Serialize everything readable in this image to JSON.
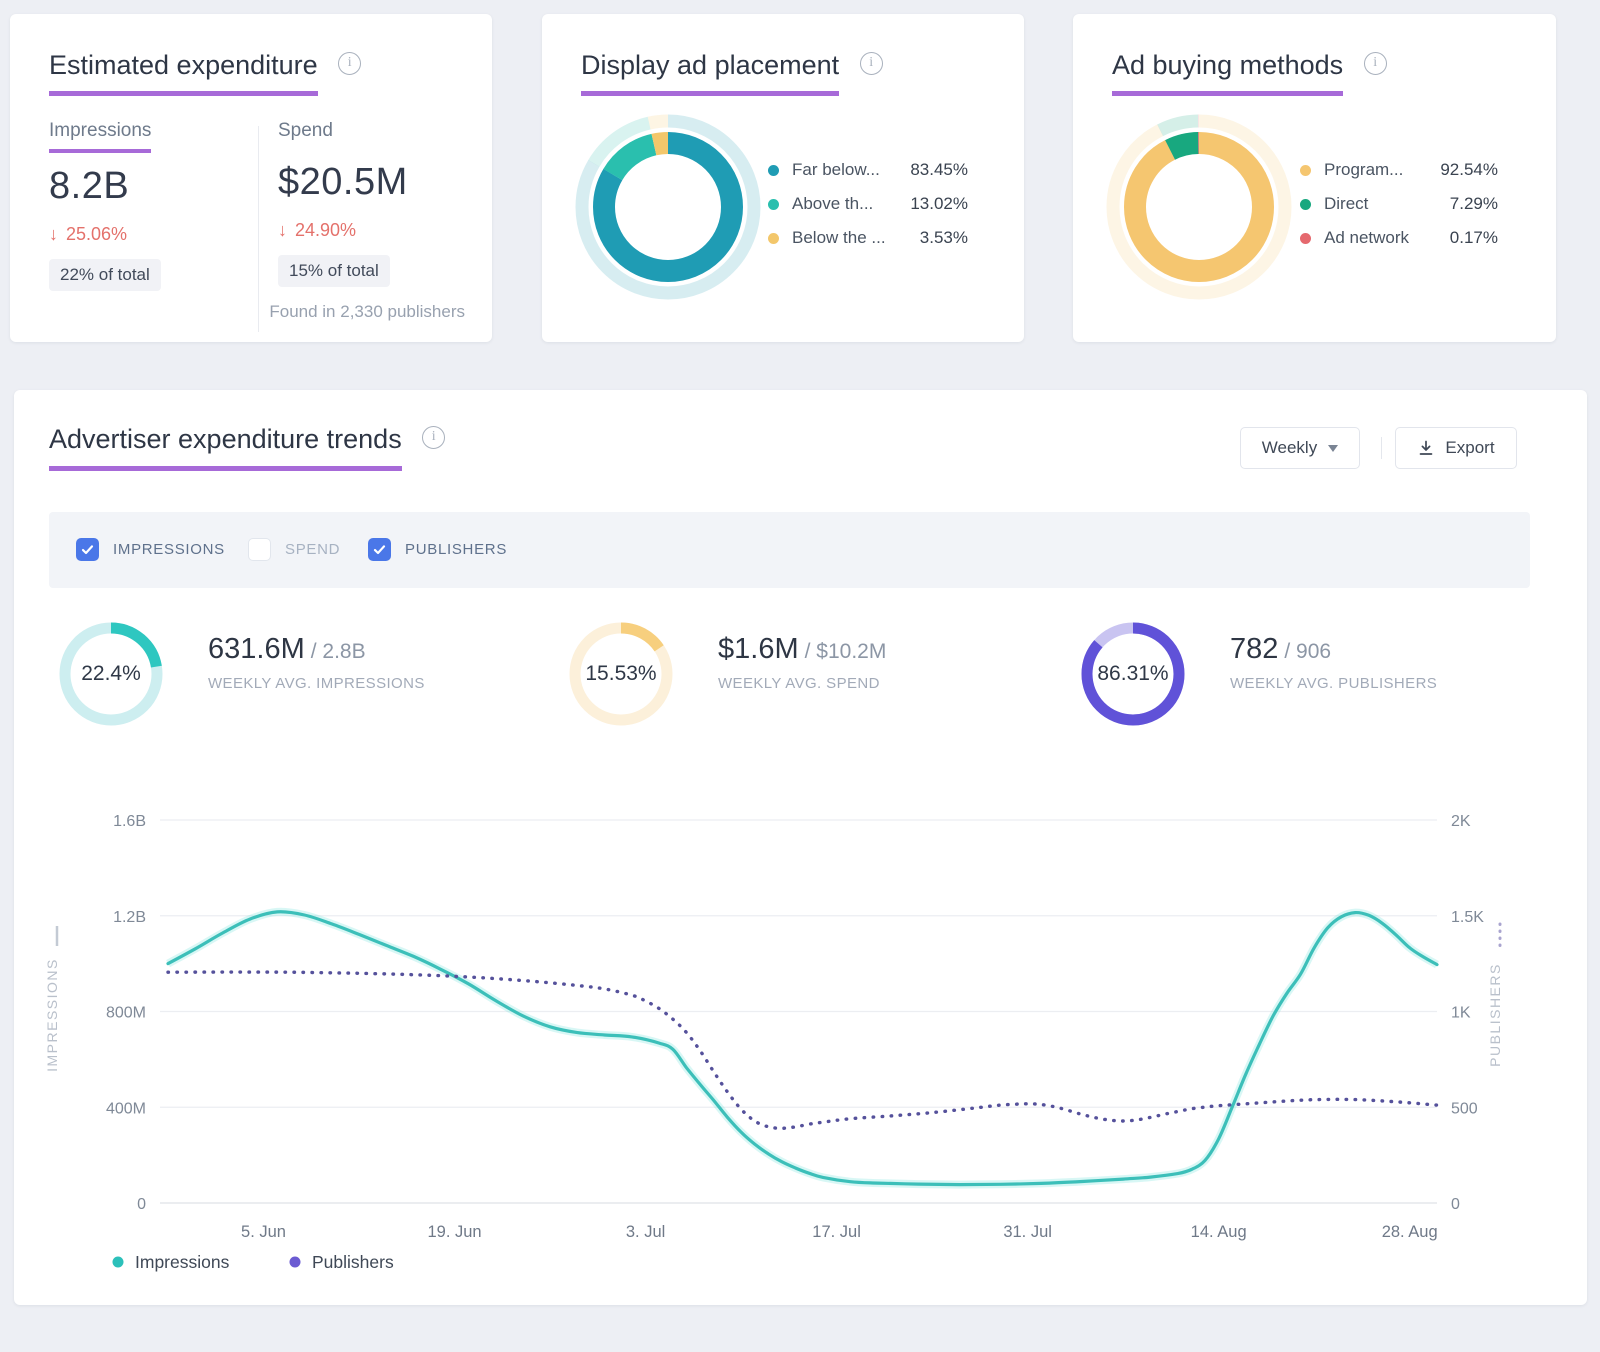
{
  "accent_underline_color": "#a76ad8",
  "cards": {
    "expenditure": {
      "title": "Estimated expenditure",
      "info_icon": "i",
      "impressions": {
        "label": "Impressions",
        "value": "8.2B",
        "change_arrow": "↓",
        "change": "25.06%",
        "share": "22% of total"
      },
      "spend": {
        "label": "Spend",
        "value": "$20.5M",
        "change_arrow": "↓",
        "change": "24.90%",
        "share": "15% of total"
      },
      "footnote": "Found in 2,330 publishers"
    },
    "placement": {
      "title": "Display ad placement",
      "info_icon": "i",
      "legend": [
        {
          "label": "Far below...",
          "value": "83.45%",
          "pct": 83.45,
          "color": "#1f9cb4"
        },
        {
          "label": "Above th...",
          "value": "13.02%",
          "pct": 13.02,
          "color": "#2abfae"
        },
        {
          "label": "Below the ...",
          "value": "3.53%",
          "pct": 3.53,
          "color": "#f3c76b"
        }
      ]
    },
    "buying": {
      "title": "Ad buying methods",
      "info_icon": "i",
      "legend": [
        {
          "label": "Program...",
          "value": "92.54%",
          "pct": 92.54,
          "color": "#f5c670"
        },
        {
          "label": "Direct",
          "value": "7.29%",
          "pct": 7.29,
          "color": "#18a87f"
        },
        {
          "label": "Ad network",
          "value": "0.17%",
          "pct": 0.17,
          "color": "#e5696e"
        }
      ]
    }
  },
  "trends": {
    "title": "Advertiser expenditure trends",
    "info_icon": "i",
    "period_selector": "Weekly",
    "export_label": "Export",
    "toggles": [
      {
        "label": "IMPRESSIONS",
        "checked": true
      },
      {
        "label": "SPEND",
        "checked": false
      },
      {
        "label": "PUBLISHERS",
        "checked": true
      }
    ],
    "stats": [
      {
        "pct": "22.4%",
        "pct_value": 22.4,
        "value": "631.6M",
        "total": "/ 2.8B",
        "caption": "WEEKLY AVG. IMPRESSIONS",
        "color": "#2ec7c0",
        "track": "#cdeef0"
      },
      {
        "pct": "15.53%",
        "pct_value": 15.53,
        "value": "$1.6M",
        "total": "/ $10.2M",
        "caption": "WEEKLY AVG. SPEND",
        "color": "#f7cf7e",
        "track": "#fcf0da"
      },
      {
        "pct": "86.31%",
        "pct_value": 86.31,
        "value": "782",
        "total": "/ 906",
        "caption": "WEEKLY AVG. PUBLISHERS",
        "color": "#6052d8",
        "track": "#c9c4f1"
      }
    ]
  },
  "chart_data": {
    "type": "line",
    "title": "Advertiser expenditure trends",
    "granularity": "Weekly",
    "grid": "horizontal",
    "legend_position": "bottom-left",
    "x_axis": {
      "tick_labels": [
        "5. Jun",
        "19. Jun",
        "3. Jul",
        "17. Jul",
        "31. Jul",
        "14. Aug",
        "28. Aug"
      ],
      "tick_days": [
        7,
        21,
        35,
        49,
        63,
        77,
        91
      ],
      "domain_days": [
        0,
        93
      ]
    },
    "y_left": {
      "title": "IMPRESSIONS",
      "tick_labels": [
        "0",
        "400M",
        "800M",
        "1.2B",
        "1.6B"
      ],
      "range_millions": [
        0,
        1600
      ]
    },
    "y_right": {
      "title": "PUBLISHERS",
      "tick_labels": [
        "0",
        "500",
        "1K",
        "1.5K",
        "2K"
      ],
      "range": [
        0,
        2000
      ]
    },
    "series": [
      {
        "name": "Impressions",
        "axis": "left",
        "unit": "millions",
        "style": "solid",
        "color": "#3cbfb9",
        "points": [
          [
            0,
            1000
          ],
          [
            2,
            1062
          ],
          [
            4,
            1128
          ],
          [
            6,
            1186
          ],
          [
            8,
            1216
          ],
          [
            10,
            1203
          ],
          [
            12,
            1166
          ],
          [
            14,
            1122
          ],
          [
            16,
            1076
          ],
          [
            18,
            1030
          ],
          [
            20,
            976
          ],
          [
            22,
            916
          ],
          [
            24,
            846
          ],
          [
            26,
            782
          ],
          [
            28,
            736
          ],
          [
            30,
            712
          ],
          [
            32,
            702
          ],
          [
            34,
            694
          ],
          [
            36,
            668
          ],
          [
            37,
            642
          ],
          [
            38,
            565
          ],
          [
            39,
            495
          ],
          [
            40,
            428
          ],
          [
            41,
            358
          ],
          [
            42,
            296
          ],
          [
            43,
            246
          ],
          [
            44,
            205
          ],
          [
            45,
            172
          ],
          [
            46,
            146
          ],
          [
            47,
            124
          ],
          [
            48,
            107
          ],
          [
            50,
            89
          ],
          [
            52,
            83
          ],
          [
            55,
            79
          ],
          [
            58,
            77
          ],
          [
            61,
            78
          ],
          [
            64,
            82
          ],
          [
            67,
            90
          ],
          [
            70,
            100
          ],
          [
            72,
            108
          ],
          [
            74,
            123
          ],
          [
            75,
            140
          ],
          [
            76,
            178
          ],
          [
            77,
            268
          ],
          [
            78,
            402
          ],
          [
            79,
            540
          ],
          [
            80,
            665
          ],
          [
            81,
            782
          ],
          [
            82,
            876
          ],
          [
            83,
            956
          ],
          [
            84,
            1066
          ],
          [
            85,
            1150
          ],
          [
            86,
            1196
          ],
          [
            87,
            1213
          ],
          [
            88,
            1202
          ],
          [
            89,
            1168
          ],
          [
            90,
            1120
          ],
          [
            91,
            1066
          ],
          [
            92,
            1028
          ],
          [
            93,
            996
          ]
        ]
      },
      {
        "name": "Publishers",
        "axis": "right",
        "unit": "count",
        "style": "dotted",
        "color": "#55519b",
        "points": [
          [
            0,
            1205
          ],
          [
            3,
            1206
          ],
          [
            6,
            1206
          ],
          [
            9,
            1205
          ],
          [
            12,
            1202
          ],
          [
            15,
            1198
          ],
          [
            18,
            1192
          ],
          [
            21,
            1184
          ],
          [
            24,
            1172
          ],
          [
            27,
            1156
          ],
          [
            30,
            1136
          ],
          [
            32,
            1118
          ],
          [
            34,
            1085
          ],
          [
            35,
            1055
          ],
          [
            36,
            1015
          ],
          [
            37,
            960
          ],
          [
            38,
            890
          ],
          [
            39,
            795
          ],
          [
            40,
            685
          ],
          [
            41,
            580
          ],
          [
            42,
            490
          ],
          [
            43,
            428
          ],
          [
            44,
            398
          ],
          [
            45,
            390
          ],
          [
            46,
            398
          ],
          [
            47,
            412
          ],
          [
            48,
            422
          ],
          [
            50,
            440
          ],
          [
            53,
            455
          ],
          [
            56,
            472
          ],
          [
            59,
            495
          ],
          [
            61,
            511
          ],
          [
            63,
            518
          ],
          [
            64,
            514
          ],
          [
            65,
            502
          ],
          [
            66,
            483
          ],
          [
            67,
            462
          ],
          [
            68,
            445
          ],
          [
            69,
            433
          ],
          [
            70,
            428
          ],
          [
            71,
            434
          ],
          [
            72,
            447
          ],
          [
            73,
            463
          ],
          [
            74,
            478
          ],
          [
            75,
            492
          ],
          [
            76,
            501
          ],
          [
            77,
            508
          ],
          [
            79,
            518
          ],
          [
            81,
            528
          ],
          [
            83,
            537
          ],
          [
            85,
            541
          ],
          [
            87,
            540
          ],
          [
            89,
            533
          ],
          [
            91,
            523
          ],
          [
            93,
            511
          ]
        ]
      }
    ],
    "legend": [
      {
        "label": "Impressions",
        "color": "#2cc0ba"
      },
      {
        "label": "Publishers",
        "color": "#6b5bd2"
      }
    ]
  }
}
